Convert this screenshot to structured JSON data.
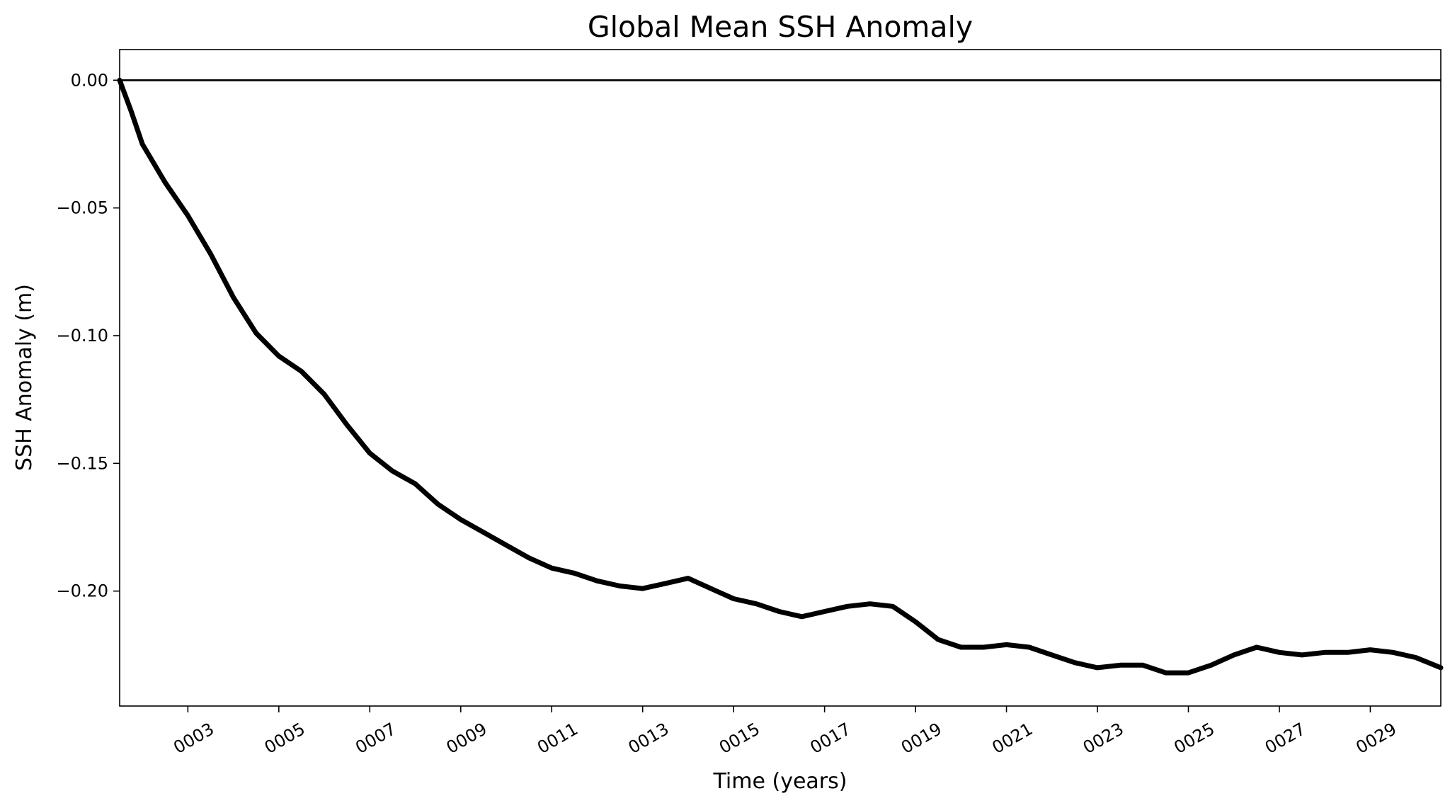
{
  "chart_data": {
    "type": "line",
    "title": "Global Mean SSH Anomaly",
    "xlabel": "Time (years)",
    "ylabel": "SSH Anomaly (m)",
    "xlim": [
      1.5,
      30.55
    ],
    "ylim": [
      -0.245,
      0.012
    ],
    "x_ticks": [
      3,
      5,
      7,
      9,
      11,
      13,
      15,
      17,
      19,
      21,
      23,
      25,
      27,
      29
    ],
    "x_tick_labels": [
      "0003",
      "0005",
      "0007",
      "0009",
      "0011",
      "0013",
      "0015",
      "0017",
      "0019",
      "0021",
      "0023",
      "0025",
      "0027",
      "0029"
    ],
    "y_ticks": [
      0.0,
      -0.05,
      -0.1,
      -0.15,
      -0.2
    ],
    "y_tick_labels": [
      "0.00",
      "−0.05",
      "−0.10",
      "−0.15",
      "−0.20"
    ],
    "grid": false,
    "reference_line": {
      "y": 0.0,
      "color": "#000000"
    },
    "series": [
      {
        "color": "#000000",
        "x": [
          1.5,
          1.75,
          2.0,
          2.5,
          3.0,
          3.5,
          4.0,
          4.5,
          5.0,
          5.5,
          6.0,
          6.5,
          7.0,
          7.5,
          8.0,
          8.5,
          9.0,
          9.5,
          10.0,
          10.5,
          11.0,
          11.5,
          12.0,
          12.5,
          13.0,
          13.5,
          14.0,
          14.5,
          15.0,
          15.5,
          16.0,
          16.5,
          17.0,
          17.5,
          18.0,
          18.5,
          19.0,
          19.5,
          20.0,
          20.5,
          21.0,
          21.5,
          22.0,
          22.5,
          23.0,
          23.5,
          24.0,
          24.5,
          25.0,
          25.5,
          26.0,
          26.5,
          27.0,
          27.5,
          28.0,
          28.5,
          29.0,
          29.5,
          30.0,
          30.55
        ],
        "y": [
          0.0,
          -0.012,
          -0.025,
          -0.04,
          -0.053,
          -0.068,
          -0.085,
          -0.099,
          -0.108,
          -0.114,
          -0.123,
          -0.135,
          -0.146,
          -0.153,
          -0.158,
          -0.166,
          -0.172,
          -0.177,
          -0.182,
          -0.187,
          -0.191,
          -0.193,
          -0.196,
          -0.198,
          -0.199,
          -0.197,
          -0.195,
          -0.199,
          -0.203,
          -0.205,
          -0.208,
          -0.21,
          -0.208,
          -0.206,
          -0.205,
          -0.206,
          -0.212,
          -0.219,
          -0.222,
          -0.222,
          -0.221,
          -0.222,
          -0.225,
          -0.228,
          -0.23,
          -0.229,
          -0.229,
          -0.232,
          -0.232,
          -0.229,
          -0.225,
          -0.222,
          -0.224,
          -0.225,
          -0.224,
          -0.224,
          -0.223,
          -0.224,
          -0.226,
          -0.23
        ]
      }
    ]
  }
}
